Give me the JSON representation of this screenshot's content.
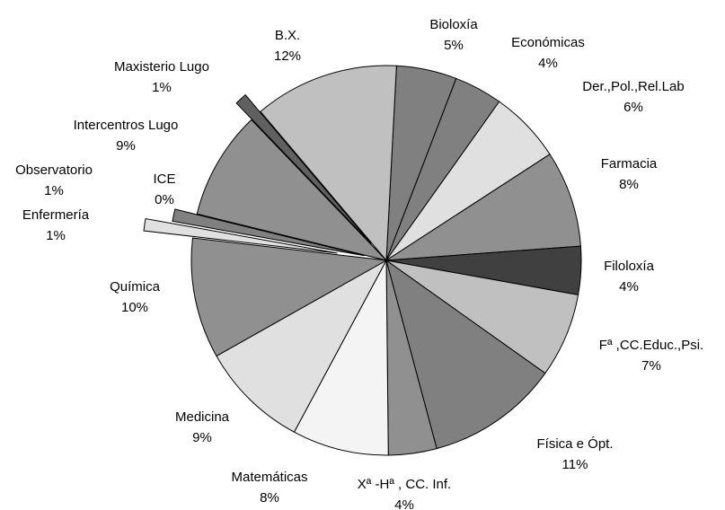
{
  "chart_data": {
    "type": "pie",
    "categories": [
      "Bioloxía",
      "Económicas",
      "Der.,Pol.,Rel.Lab",
      "Farmacia",
      "Filoloxía",
      "Fª ,CC.Educ.,Psi.",
      "Física e Ópt.",
      "Xª -Hª , CC. Inf.",
      "Matemáticas",
      "Medicina",
      "Química",
      "Enfermería",
      "Observatorio",
      "ICE",
      "Intercentros Lugo",
      "Maxisterio Lugo",
      "B.X."
    ],
    "values": [
      5,
      4,
      6,
      8,
      4,
      7,
      11,
      4,
      8,
      9,
      10,
      1,
      1,
      0,
      9,
      1,
      12
    ],
    "value_labels": [
      "5%",
      "4%",
      "6%",
      "8%",
      "4%",
      "7%",
      "11%",
      "4%",
      "8%",
      "9%",
      "10%",
      "1%",
      "1%",
      "0%",
      "9%",
      "1%",
      "12%"
    ],
    "colors": [
      "#808080",
      "#808080",
      "#e0e0e0",
      "#909090",
      "#404040",
      "#c0c0c0",
      "#808080",
      "#909090",
      "#f4f4f4",
      "#e0e0e0",
      "#909090",
      "#e0e0e0",
      "#808080",
      "#a0a0a0",
      "#909090",
      "#606060",
      "#c0c0c0"
    ],
    "exploded": [
      false,
      false,
      false,
      false,
      false,
      false,
      false,
      false,
      false,
      false,
      false,
      true,
      true,
      false,
      false,
      true,
      false
    ]
  }
}
